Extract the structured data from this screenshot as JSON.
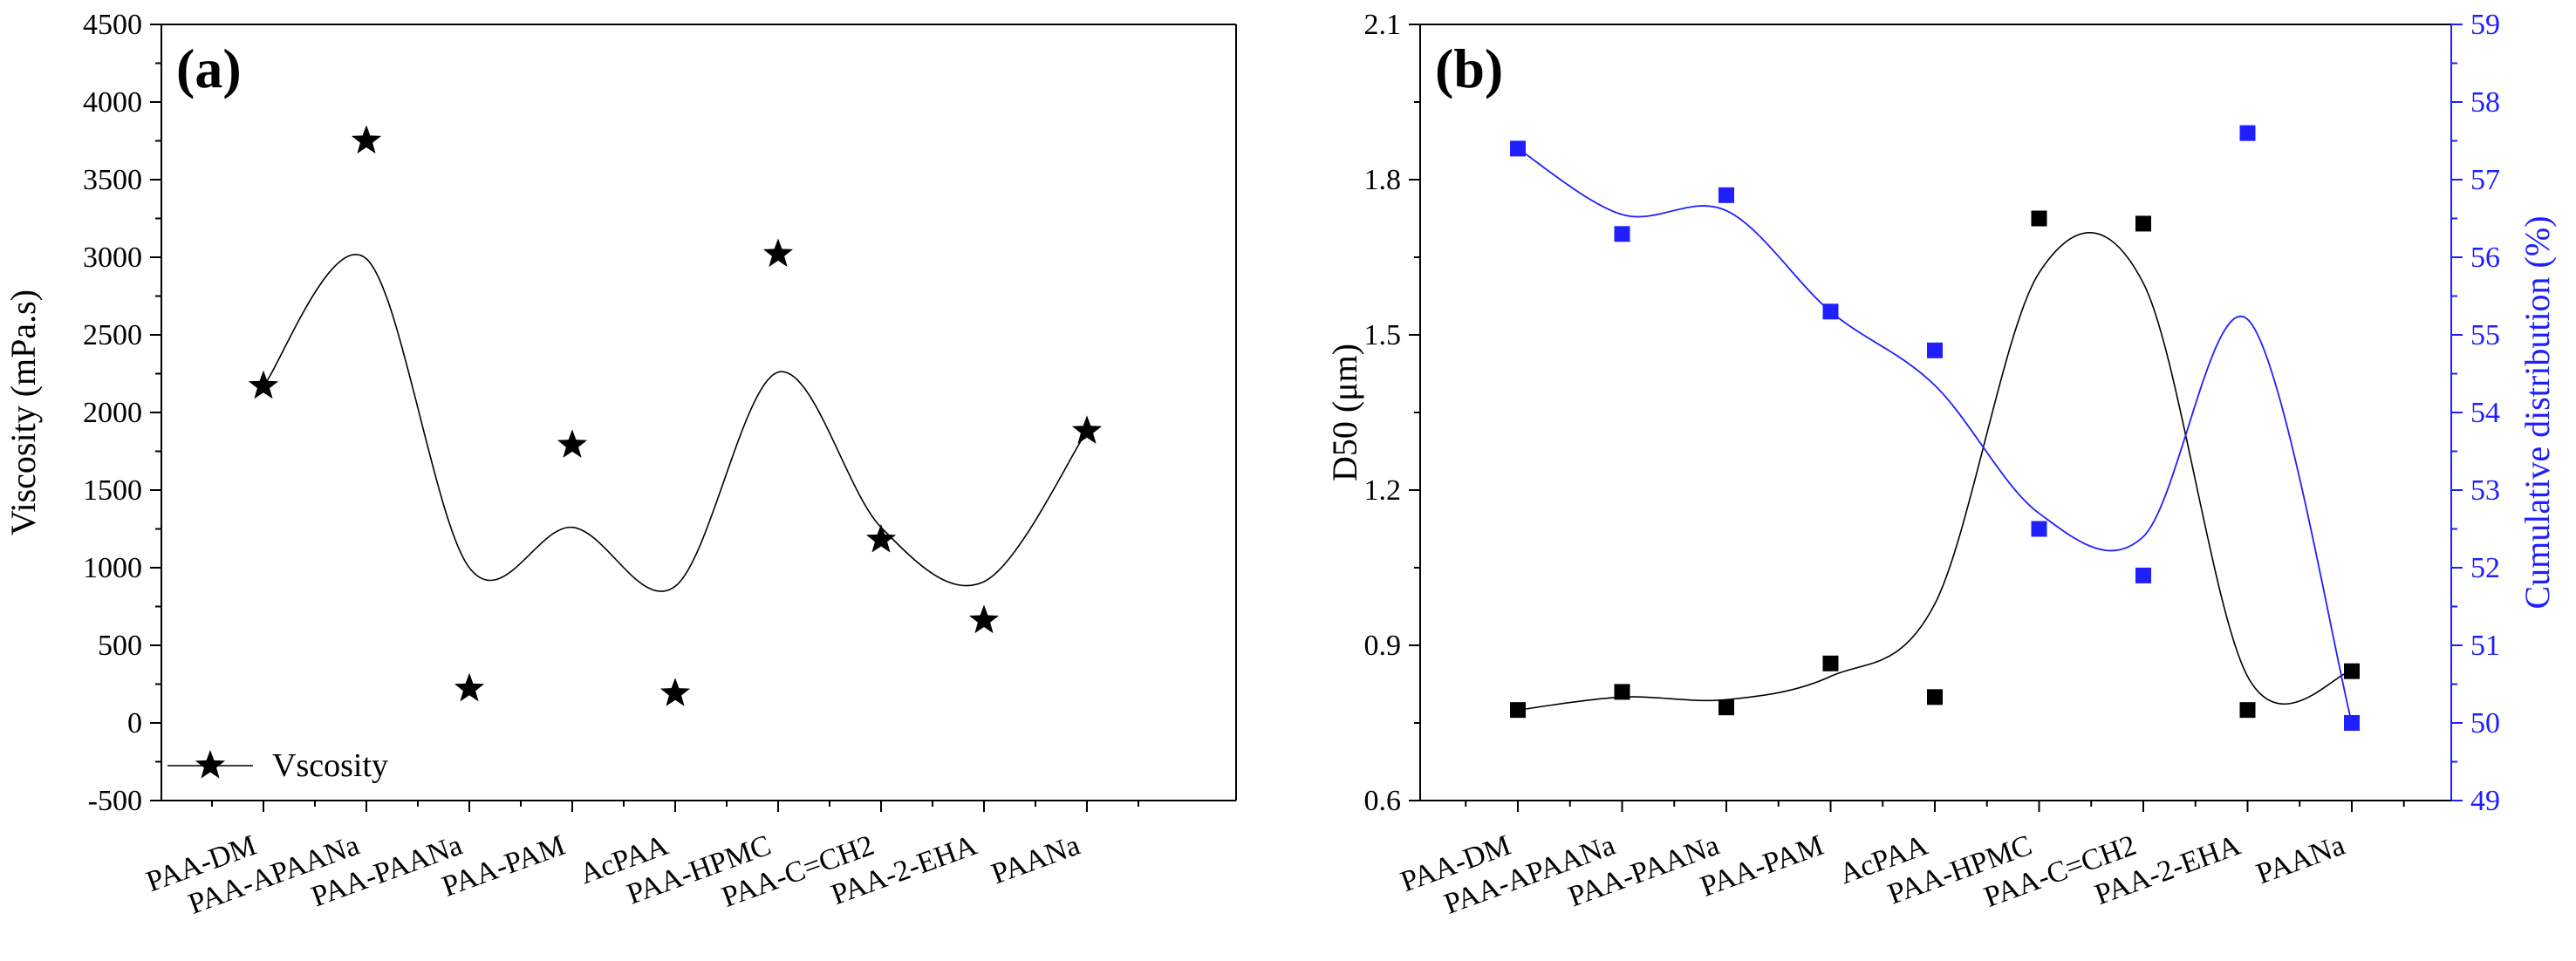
{
  "chart_data": [
    {
      "type": "scatter",
      "panel_label": "(a)",
      "categories": [
        "PAA-DM",
        "PAA-APAANa",
        "PAA-PAANa",
        "PAA-PAM",
        "AcPAA",
        "PAA-HPMC",
        "PAA-C=CH2",
        "PAA-2-EHA",
        "PAANa"
      ],
      "ylabel": "Viscosity (mPa.s)",
      "xlabel": "",
      "ylim": [
        -500,
        4500
      ],
      "yticks": [
        -500,
        0,
        500,
        1000,
        1500,
        2000,
        2500,
        3000,
        3500,
        4000,
        4500
      ],
      "series": [
        {
          "name": "Vscosity",
          "marker": "star",
          "color": "#000000",
          "values": [
            2170,
            3750,
            220,
            1790,
            190,
            3020,
            1180,
            660,
            1880
          ],
          "fit_curve": [
            2170,
            2990,
            1000,
            1260,
            880,
            2260,
            1260,
            910,
            1880
          ]
        }
      ],
      "legend": {
        "placement": "bottom-left"
      },
      "grid": false
    },
    {
      "type": "scatter",
      "panel_label": "(b)",
      "categories": [
        "PAA-DM",
        "PAA-APAANa",
        "PAA-PAANa",
        "PAA-PAM",
        "AcPAA",
        "PAA-HPMC",
        "PAA-C=CH2",
        "PAA-2-EHA",
        "PAANa"
      ],
      "ylabel": "D50 (μm)",
      "y2label": "Cumulative distribution (%)",
      "xlabel": "",
      "ylim": [
        0.6,
        2.1
      ],
      "yticks": [
        "0.6",
        "0.9",
        "1.2",
        "1.5",
        "1.8",
        "2.1"
      ],
      "y2lim": [
        49,
        59
      ],
      "y2ticks": [
        49,
        50,
        51,
        52,
        53,
        54,
        55,
        56,
        57,
        58,
        59
      ],
      "series": [
        {
          "axis": "left",
          "marker": "square",
          "color": "#000000",
          "values": [
            0.775,
            0.81,
            0.78,
            0.865,
            0.8,
            1.725,
            1.715,
            0.775,
            0.85
          ],
          "fit_curve": [
            0.775,
            0.8,
            0.795,
            0.84,
            0.98,
            1.62,
            1.6,
            0.84,
            0.85
          ]
        },
        {
          "axis": "right",
          "marker": "square",
          "color": "#1f1fff",
          "values": [
            57.4,
            56.3,
            56.8,
            55.3,
            54.8,
            52.5,
            51.9,
            57.6,
            50.0
          ],
          "fit_curve": [
            57.4,
            56.55,
            56.6,
            55.3,
            54.35,
            52.7,
            52.4,
            55.2,
            50.0
          ]
        }
      ],
      "grid": false
    }
  ]
}
